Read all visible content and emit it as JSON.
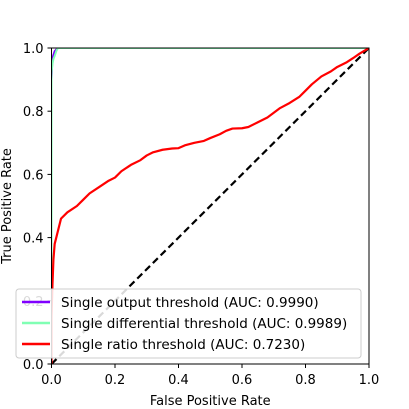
{
  "chart_data": {
    "type": "line",
    "title": "",
    "xlabel": "False Positive Rate",
    "ylabel": "True Positive Rate",
    "xlim": [
      0.0,
      1.0
    ],
    "ylim": [
      0.0,
      1.0
    ],
    "xticks": [
      "0.0",
      "0.2",
      "0.4",
      "0.6",
      "0.8",
      "1.0"
    ],
    "yticks": [
      "0.0",
      "0.2",
      "0.4",
      "0.6",
      "0.8",
      "1.0"
    ],
    "grid": false,
    "legend_position": "lower-right",
    "chance_line": {
      "x": [
        0,
        1
      ],
      "y": [
        0,
        1
      ],
      "color": "#000000",
      "style": "dashed"
    },
    "series": [
      {
        "name": "Single output threshold (AUC: 0.9990)",
        "color": "#8000ff",
        "x": [
          0.0,
          0.0,
          0.002,
          0.005,
          0.01,
          0.02,
          1.0
        ],
        "y": [
          0.0,
          0.9,
          0.95,
          0.975,
          0.99,
          1.0,
          1.0
        ]
      },
      {
        "name": "Single differential threshold (AUC: 0.9989)",
        "color": "#80ffb4",
        "x": [
          0.0,
          0.0,
          0.003,
          0.006,
          0.01,
          0.015,
          0.02,
          1.0
        ],
        "y": [
          0.0,
          0.92,
          0.95,
          0.965,
          0.975,
          0.99,
          1.0,
          1.0
        ]
      },
      {
        "name": "Single ratio threshold (AUC: 0.7230)",
        "color": "#ff0000",
        "x": [
          0.0,
          0.0,
          0.003,
          0.006,
          0.01,
          0.015,
          0.02,
          0.03,
          0.05,
          0.08,
          0.1,
          0.12,
          0.15,
          0.18,
          0.2,
          0.22,
          0.25,
          0.28,
          0.3,
          0.32,
          0.35,
          0.38,
          0.4,
          0.42,
          0.45,
          0.48,
          0.5,
          0.53,
          0.55,
          0.57,
          0.6,
          0.62,
          0.65,
          0.68,
          0.7,
          0.72,
          0.75,
          0.78,
          0.8,
          0.82,
          0.85,
          0.88,
          0.9,
          0.93,
          0.95,
          0.97,
          1.0
        ],
        "y": [
          0.0,
          0.15,
          0.25,
          0.33,
          0.38,
          0.4,
          0.42,
          0.46,
          0.48,
          0.5,
          0.52,
          0.54,
          0.56,
          0.58,
          0.59,
          0.61,
          0.63,
          0.645,
          0.66,
          0.67,
          0.678,
          0.682,
          0.683,
          0.692,
          0.7,
          0.706,
          0.715,
          0.727,
          0.738,
          0.745,
          0.746,
          0.75,
          0.765,
          0.78,
          0.795,
          0.81,
          0.826,
          0.845,
          0.865,
          0.885,
          0.91,
          0.926,
          0.94,
          0.955,
          0.968,
          0.982,
          1.0
        ]
      }
    ]
  }
}
